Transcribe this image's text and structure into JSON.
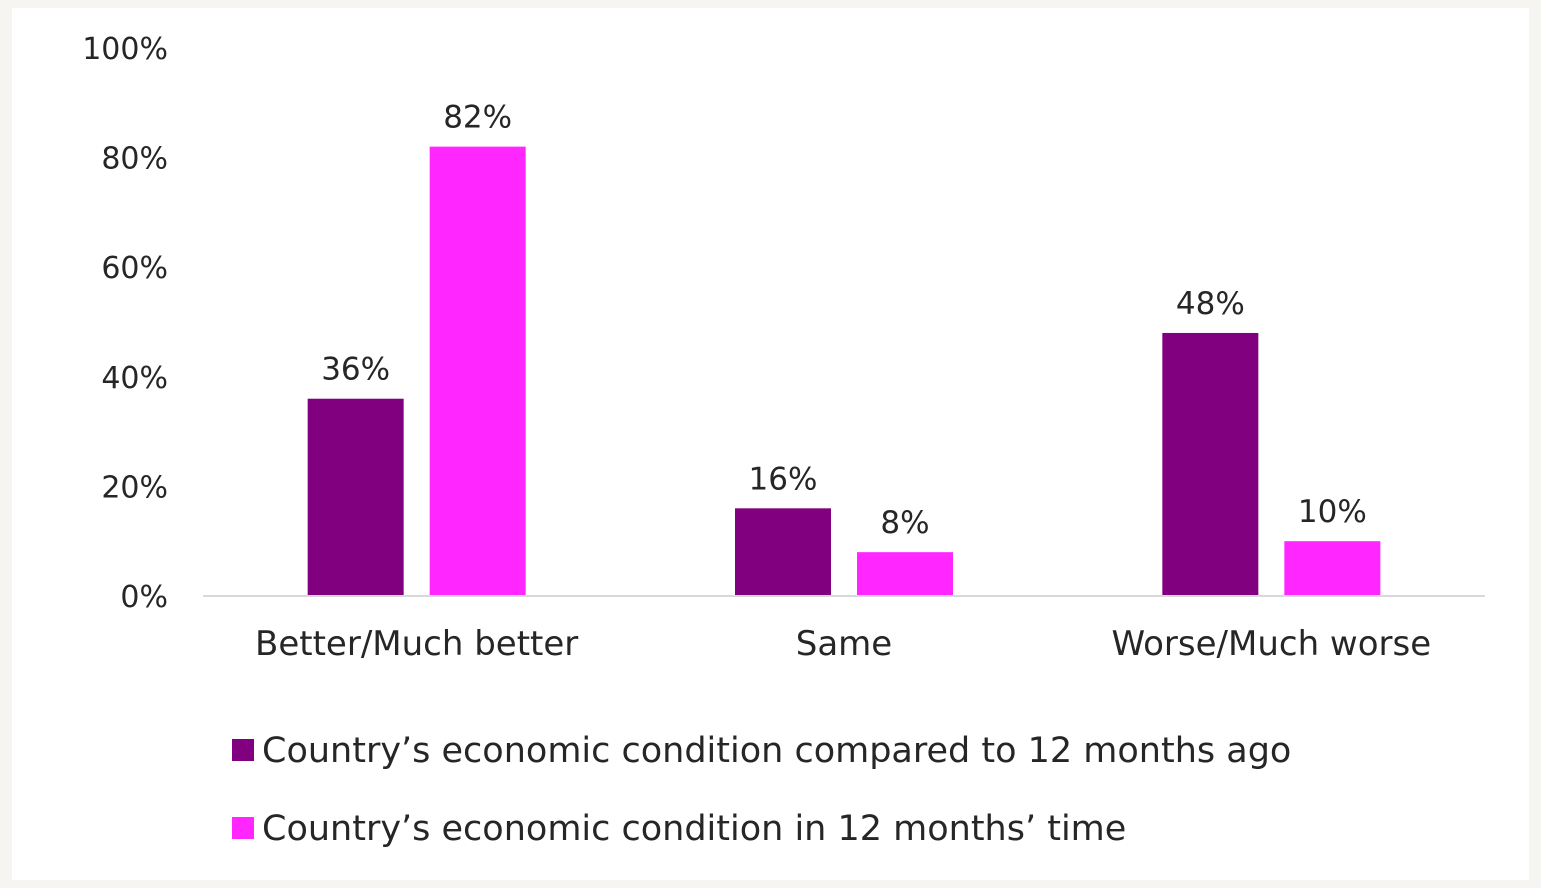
{
  "chart_data": {
    "type": "bar",
    "categories": [
      "Better/Much better",
      "Same",
      "Worse/Much worse"
    ],
    "series": [
      {
        "name": "Country’s economic condition compared to 12 months ago",
        "values": [
          36,
          16,
          48
        ],
        "labels": [
          "36%",
          "16%",
          "48%"
        ],
        "color": "#800080"
      },
      {
        "name": "Country’s economic condition in 12 months’ time",
        "values": [
          82,
          8,
          10
        ],
        "labels": [
          "82%",
          "8%",
          "10%"
        ],
        "color": "#ff26ff"
      }
    ],
    "ylim": [
      0,
      100
    ],
    "yticks": [
      "0%",
      "20%",
      "40%",
      "60%",
      "80%",
      "100%"
    ],
    "title": "",
    "xlabel": "",
    "ylabel": "",
    "grid": false,
    "legend_position": "bottom"
  }
}
